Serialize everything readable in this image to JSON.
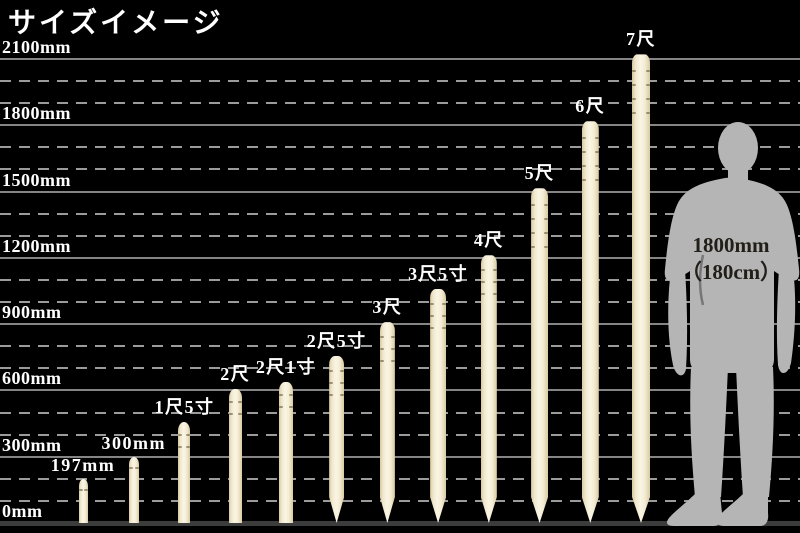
{
  "title": "サイズイメージ",
  "chart_data": {
    "type": "bar",
    "title": "サイズイメージ",
    "unit": "mm",
    "categories": [
      "197mm",
      "300mm",
      "1尺5寸",
      "2尺",
      "2尺1寸",
      "2尺5寸",
      "3尺",
      "3尺5寸",
      "4尺",
      "5尺",
      "6尺",
      "7尺"
    ],
    "values_mm": [
      197,
      300,
      455,
      606,
      636,
      758,
      909,
      1061,
      1212,
      1515,
      1818,
      2121
    ],
    "pointed_tip": [
      false,
      false,
      false,
      false,
      false,
      true,
      true,
      true,
      true,
      true,
      true,
      true
    ],
    "y_axis": {
      "max_mm": 2100,
      "major_step_mm": 300,
      "minor_step_mm": 100,
      "ticks": [
        {
          "mm": 0,
          "label": "0mm"
        },
        {
          "mm": 300,
          "label": "300mm"
        },
        {
          "mm": 600,
          "label": "600mm"
        },
        {
          "mm": 900,
          "label": "900mm"
        },
        {
          "mm": 1200,
          "label": "1200mm"
        },
        {
          "mm": 1500,
          "label": "1500mm"
        },
        {
          "mm": 1800,
          "label": "1800mm"
        },
        {
          "mm": 2100,
          "label": "2100mm"
        }
      ],
      "grid": "solid major lines, dashed minor lines"
    },
    "legend": null,
    "reference_figure": {
      "type": "human-silhouette",
      "height_mm": 1800,
      "label_line1": "1800mm",
      "label_line2": "（180cm）"
    }
  },
  "colors": {
    "background": "#000000",
    "text": "#ffffff",
    "grid_solid": "#858585",
    "grid_dashed": "#9b9b9b",
    "baseline": "#3c3c3c",
    "stake_light": "#faf5e4",
    "stake_dark": "#d8c99f",
    "silhouette": "#b5b5b5",
    "silhouette_text": "#221e18"
  }
}
